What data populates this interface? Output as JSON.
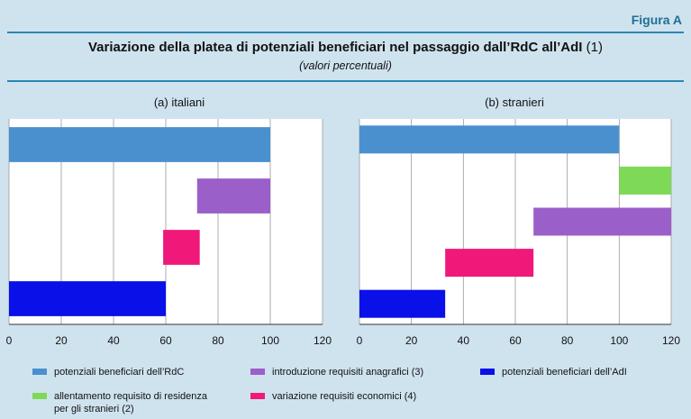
{
  "figure_label": "Figura A",
  "title_main": "Variazione della platea di potenziali beneficiari nel passaggio dall’RdC all’AdI",
  "title_note": "(1)",
  "subtitle": "(valori percentuali)",
  "colors": {
    "rdc": "#4a90cf",
    "residence": "#7ed957",
    "anagrafici": "#9b5fc9",
    "economici": "#f0197a",
    "adi": "#0a10e8"
  },
  "chart_data": [
    {
      "type": "bar",
      "subtype": "waterfall-horizontal",
      "title": "(a) italiani",
      "xlim": [
        0,
        120
      ],
      "xticks": [
        "0",
        "20",
        "40",
        "60",
        "80",
        "100",
        "120"
      ],
      "bars": [
        {
          "key": "rdc",
          "start": 0,
          "end": 100
        },
        {
          "key": "anagrafici",
          "start": 72,
          "end": 100
        },
        {
          "key": "economici",
          "start": 59,
          "end": 73
        },
        {
          "key": "adi",
          "start": 0,
          "end": 60
        }
      ]
    },
    {
      "type": "bar",
      "subtype": "waterfall-horizontal",
      "title": "(b) stranieri",
      "xlim": [
        0,
        120
      ],
      "xticks": [
        "0",
        "20",
        "40",
        "60",
        "80",
        "100",
        "120"
      ],
      "bars": [
        {
          "key": "rdc",
          "start": 0,
          "end": 100
        },
        {
          "key": "residence",
          "start": 100,
          "end": 120
        },
        {
          "key": "anagrafici",
          "start": 67,
          "end": 120
        },
        {
          "key": "economici",
          "start": 33,
          "end": 67
        },
        {
          "key": "adi",
          "start": 0,
          "end": 33
        }
      ]
    }
  ],
  "legend": {
    "rdc": "potenziali beneficiari dell’RdC",
    "anagrafici": "introduzione requisiti anagrafici (3)",
    "adi": "potenziali beneficiari dell’AdI",
    "residence_line1": "allentamento requisito di residenza",
    "residence_line2": "per gli stranieri (2)",
    "economici": "variazione requisiti economici (4)"
  }
}
